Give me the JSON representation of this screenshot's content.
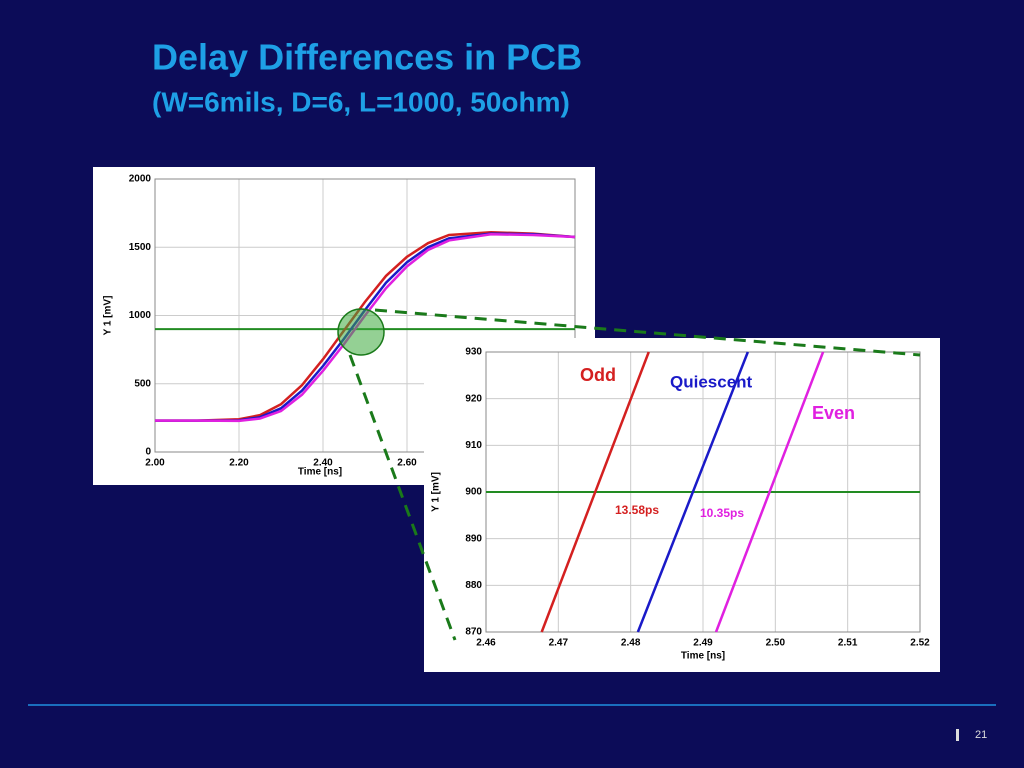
{
  "slide": {
    "title": "Delay Differences in PCB",
    "subtitle": "(W=6mils, D=6, L=1000, 50ohm)",
    "page_number": "21"
  },
  "chart_data": [
    {
      "type": "line",
      "xlabel": "Time [ns]",
      "ylabel": "Y 1  [mV]",
      "x": [
        2.0,
        2.1,
        2.2,
        2.25,
        2.3,
        2.35,
        2.4,
        2.45,
        2.5,
        2.55,
        2.6,
        2.65,
        2.7,
        2.8,
        2.9,
        3.0
      ],
      "series": [
        {
          "name": "Odd",
          "color": "#d42020",
          "values": [
            230,
            230,
            240,
            270,
            350,
            490,
            680,
            890,
            1100,
            1290,
            1430,
            1530,
            1590,
            1610,
            1600,
            1575
          ]
        },
        {
          "name": "Quiescent",
          "color": "#1a1ac8",
          "values": [
            230,
            230,
            232,
            255,
            320,
            450,
            630,
            830,
            1040,
            1240,
            1390,
            1500,
            1565,
            1600,
            1595,
            1575
          ]
        },
        {
          "name": "Even",
          "color": "#e020e0",
          "values": [
            230,
            230,
            228,
            245,
            300,
            420,
            595,
            790,
            1000,
            1200,
            1360,
            1480,
            1550,
            1595,
            1590,
            1575
          ]
        }
      ],
      "hline": 900,
      "hline_color": "#228b22",
      "xlim": [
        2.0,
        3.0
      ],
      "xticks": [
        {
          "value": 2.0,
          "label": "2.00"
        },
        {
          "value": 2.2,
          "label": "2.20"
        },
        {
          "value": 2.4,
          "label": "2.40"
        },
        {
          "value": 2.6,
          "label": "2.60"
        }
      ],
      "ylim": [
        0,
        2000
      ],
      "yticks": [
        0,
        500,
        1000,
        1500,
        2000
      ],
      "grid": true
    },
    {
      "type": "line",
      "xlabel": "Time [ns]",
      "ylabel": "Y 1  [mV]",
      "series": [
        {
          "name": "Odd",
          "color": "#d42020",
          "x": [
            2.4677,
            2.4825
          ],
          "values": [
            870,
            930
          ]
        },
        {
          "name": "Quiescent",
          "color": "#1a1ac8",
          "x": [
            2.481,
            2.4962
          ],
          "values": [
            870,
            930
          ]
        },
        {
          "name": "Even",
          "color": "#e020e0",
          "x": [
            2.4918,
            2.5066
          ],
          "values": [
            870,
            930
          ]
        }
      ],
      "annotations": [
        "13.58ps",
        "10.35ps"
      ],
      "hline": 900,
      "hline_color": "#228b22",
      "xlim": [
        2.46,
        2.52
      ],
      "xticks": [
        2.46,
        2.47,
        2.48,
        2.49,
        {
          "value": 2.5,
          "label": "2.50"
        },
        2.51,
        2.52
      ],
      "ylim": [
        870,
        930
      ],
      "yticks": [
        870,
        880,
        890,
        900,
        910,
        920,
        930
      ],
      "grid": true
    }
  ]
}
